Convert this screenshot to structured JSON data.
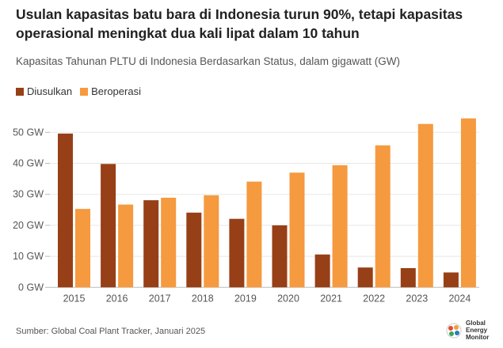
{
  "chart_data": {
    "type": "bar",
    "title": "Usulan kapasitas batu bara di Indonesia turun 90%, tetapi kapasitas operasional meningkat dua kali lipat dalam 10 tahun",
    "subtitle": "Kapasitas Tahunan PLTU di Indonesia Berdasarkan Status, dalam gigawatt (GW)",
    "categories": [
      "2015",
      "2016",
      "2017",
      "2018",
      "2019",
      "2020",
      "2021",
      "2022",
      "2023",
      "2024"
    ],
    "series": [
      {
        "name": "Diusulkan",
        "color": "#973f17",
        "values": [
          49.6,
          39.8,
          28.1,
          24.1,
          22.1,
          20.0,
          10.6,
          6.4,
          6.2,
          4.8
        ]
      },
      {
        "name": "Beroperasi",
        "color": "#f59a3f",
        "values": [
          25.3,
          26.7,
          28.9,
          29.7,
          34.1,
          37.0,
          39.4,
          45.8,
          52.7,
          54.5
        ]
      }
    ],
    "ylim": [
      0,
      55
    ],
    "yticks": [
      0,
      10,
      20,
      30,
      40,
      50
    ],
    "ytick_suffix": " GW",
    "grid": true,
    "legend_position": "top-left"
  },
  "source": "Sumber: Global Coal Plant Tracker, Januari 2025",
  "logo": {
    "line1": "Global",
    "line2": "Energy",
    "line3": "Monitor"
  }
}
